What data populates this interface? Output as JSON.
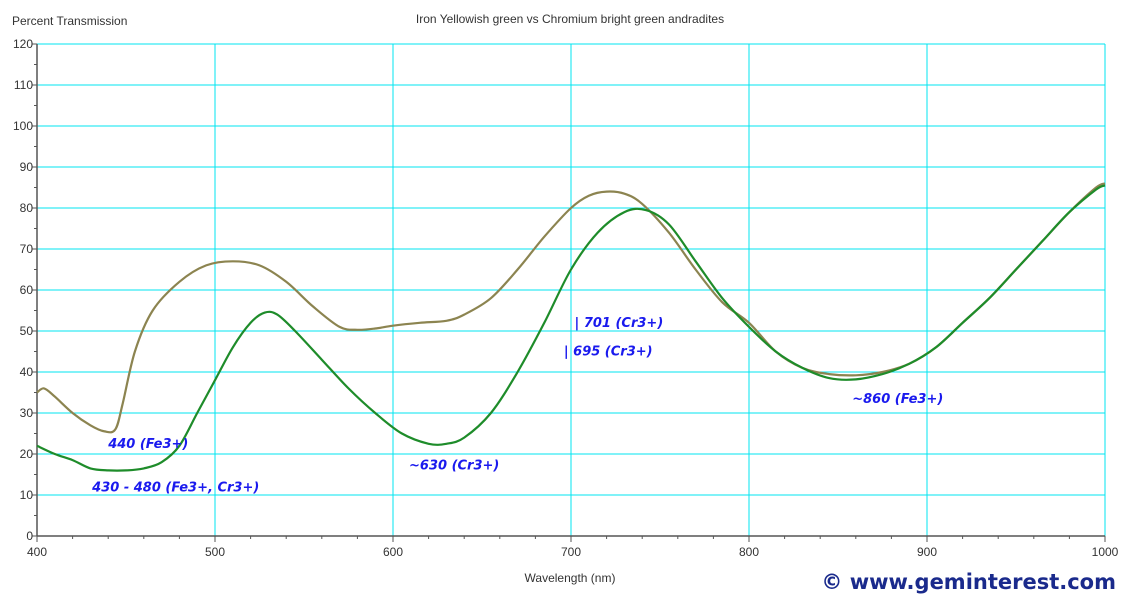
{
  "chart_data": {
    "type": "line",
    "title": "Iron Yellowish green vs Chromium bright green andradites",
    "xlabel": "Wavelength (nm)",
    "ylabel": "Percent Transmission",
    "xlim": [
      400,
      1000
    ],
    "ylim": [
      0,
      120
    ],
    "x_ticks": [
      400,
      500,
      600,
      700,
      800,
      900,
      1000
    ],
    "y_ticks": [
      0,
      10,
      20,
      30,
      40,
      50,
      60,
      70,
      80,
      90,
      100,
      110,
      120
    ],
    "grid": true,
    "series": [
      {
        "color": "#8c8450",
        "points": [
          [
            400,
            35
          ],
          [
            404,
            36
          ],
          [
            410,
            34
          ],
          [
            420,
            30
          ],
          [
            430,
            27
          ],
          [
            438,
            25.5
          ],
          [
            444,
            26
          ],
          [
            448,
            32
          ],
          [
            455,
            45
          ],
          [
            465,
            55
          ],
          [
            480,
            62
          ],
          [
            495,
            66
          ],
          [
            510,
            67
          ],
          [
            525,
            66
          ],
          [
            540,
            62
          ],
          [
            555,
            56
          ],
          [
            570,
            51
          ],
          [
            580,
            50.3
          ],
          [
            590,
            50.6
          ],
          [
            600,
            51.3
          ],
          [
            615,
            52
          ],
          [
            630,
            52.5
          ],
          [
            640,
            54
          ],
          [
            655,
            58
          ],
          [
            670,
            65
          ],
          [
            685,
            73
          ],
          [
            700,
            80
          ],
          [
            710,
            83
          ],
          [
            720,
            84
          ],
          [
            730,
            83.5
          ],
          [
            740,
            81
          ],
          [
            755,
            74
          ],
          [
            770,
            65
          ],
          [
            785,
            57
          ],
          [
            800,
            52
          ],
          [
            815,
            45
          ],
          [
            830,
            41
          ],
          [
            845,
            39.5
          ],
          [
            860,
            39.2
          ],
          [
            875,
            40
          ],
          [
            890,
            42
          ],
          [
            905,
            46
          ],
          [
            920,
            52
          ],
          [
            935,
            58
          ],
          [
            950,
            65
          ],
          [
            965,
            72
          ],
          [
            980,
            79
          ],
          [
            995,
            85
          ],
          [
            1000,
            86
          ]
        ]
      },
      {
        "color": "#1e8c2a",
        "points": [
          [
            400,
            22
          ],
          [
            410,
            20
          ],
          [
            420,
            18.5
          ],
          [
            430,
            16.5
          ],
          [
            440,
            16
          ],
          [
            450,
            16
          ],
          [
            460,
            16.5
          ],
          [
            470,
            18
          ],
          [
            480,
            22
          ],
          [
            490,
            30
          ],
          [
            500,
            38
          ],
          [
            510,
            46
          ],
          [
            520,
            52
          ],
          [
            528,
            54.5
          ],
          [
            535,
            54
          ],
          [
            545,
            50
          ],
          [
            560,
            43
          ],
          [
            575,
            36
          ],
          [
            590,
            30
          ],
          [
            605,
            25
          ],
          [
            620,
            22.5
          ],
          [
            630,
            22.5
          ],
          [
            640,
            24
          ],
          [
            655,
            30
          ],
          [
            670,
            40
          ],
          [
            685,
            52
          ],
          [
            700,
            65
          ],
          [
            715,
            74
          ],
          [
            730,
            79
          ],
          [
            742,
            79.5
          ],
          [
            755,
            76
          ],
          [
            770,
            67
          ],
          [
            785,
            58
          ],
          [
            800,
            51
          ],
          [
            815,
            45
          ],
          [
            830,
            41
          ],
          [
            845,
            38.5
          ],
          [
            860,
            38.2
          ],
          [
            875,
            39.5
          ],
          [
            890,
            42
          ],
          [
            905,
            46
          ],
          [
            920,
            52
          ],
          [
            935,
            58
          ],
          [
            950,
            65
          ],
          [
            965,
            72
          ],
          [
            980,
            79
          ],
          [
            995,
            84.5
          ],
          [
            1000,
            85.5
          ]
        ]
      }
    ],
    "annotations": [
      {
        "text": "440 (Fe3+)",
        "x": 440,
        "y": 21.5
      },
      {
        "text": "430 - 480 (Fe3+, Cr3+)",
        "x": 431,
        "y": 10.8
      },
      {
        "text": "~630 (Cr3+)",
        "x": 609,
        "y": 16.2
      },
      {
        "text": "| 701 (Cr3+)",
        "x": 702,
        "y": 51
      },
      {
        "text": "| 695 (Cr3+)",
        "x": 696,
        "y": 44
      },
      {
        "text": "~860 (Fe3+)",
        "x": 858,
        "y": 32.5
      }
    ]
  },
  "colors": {
    "grid": "#00e5f0",
    "axis": "#555555",
    "annotation": "#1a1aee"
  },
  "copyright": "© www.geminterest.com"
}
